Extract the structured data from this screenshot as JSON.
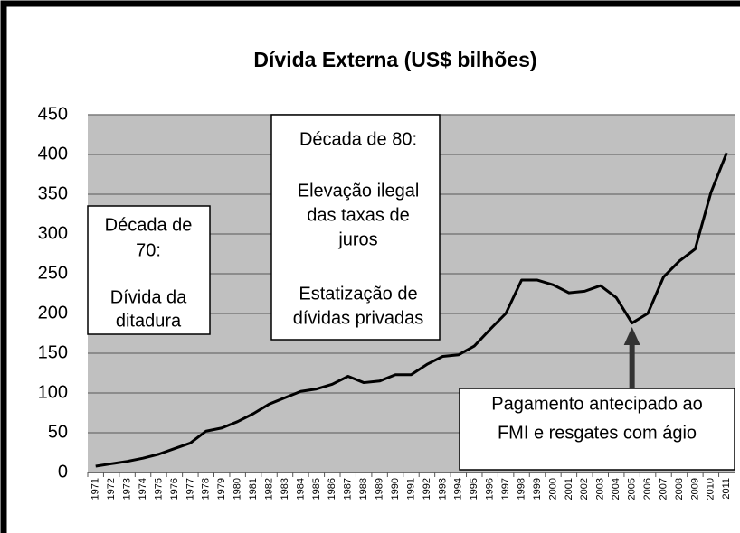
{
  "chart_data": {
    "type": "line",
    "title": "Dívida Externa (US$ bilhões)",
    "categories": [
      "1971",
      "1972",
      "1973",
      "1974",
      "1975",
      "1976",
      "1977",
      "1978",
      "1979",
      "1980",
      "1981",
      "1982",
      "1983",
      "1984",
      "1985",
      "1986",
      "1987",
      "1988",
      "1989",
      "1990",
      "1991",
      "1992",
      "1993",
      "1994",
      "1995",
      "1996",
      "1997",
      "1998",
      "1999",
      "2000",
      "2001",
      "2002",
      "2003",
      "2004",
      "2005",
      "2006",
      "2007",
      "2008",
      "2009",
      "2010",
      "2011"
    ],
    "values": [
      8,
      11,
      14,
      18,
      23,
      30,
      37,
      52,
      56,
      64,
      74,
      86,
      94,
      102,
      105,
      111,
      121,
      113,
      115,
      123,
      123,
      136,
      146,
      148,
      159,
      180,
      200,
      242,
      242,
      236,
      226,
      228,
      235,
      220,
      188,
      200,
      246,
      266,
      281,
      352,
      402
    ],
    "color": "#000000",
    "ylim": [
      0,
      450
    ],
    "yticks": [
      0,
      50,
      100,
      150,
      200,
      250,
      300,
      350,
      400,
      450
    ],
    "grid": true,
    "annotations": [
      {
        "lines": [
          "Década de",
          "70:",
          "Dívida da",
          "ditadura"
        ]
      },
      {
        "lines": [
          "Década de 80:",
          "Elevação ilegal",
          "das taxas de",
          "juros",
          "Estatização de",
          "dívidas privadas"
        ]
      },
      {
        "lines": [
          "Pagamento antecipado ao",
          "FMI e resgates com ágio"
        ]
      }
    ]
  }
}
